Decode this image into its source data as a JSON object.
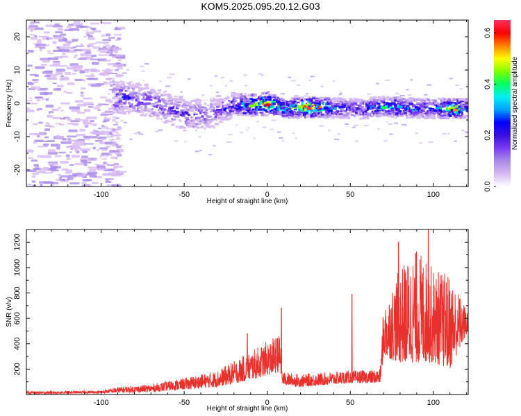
{
  "figure_title": "KOM5.2025.095.20.12.G03",
  "colors": {
    "snr_line": "#e8312c",
    "frame": "#000000",
    "colormap": [
      "#ffffff",
      "#d6b8f2",
      "#a98be8",
      "#7a3cf0",
      "#3a10e0",
      "#0000ff",
      "#00a0ff",
      "#00f0f0",
      "#00ff60",
      "#80ff00",
      "#ffff00",
      "#ff8000",
      "#ff0000",
      "#ff3060"
    ]
  },
  "chart_data": [
    {
      "type": "heatmap",
      "title": "KOM5.2025.095.20.12.G03",
      "xlabel": "Height of straight line (km)",
      "ylabel": "Frequency (Hz)",
      "xlim": [
        -145,
        121
      ],
      "ylim": [
        -25,
        25
      ],
      "x_ticks": [
        -100,
        -50,
        0,
        50,
        100
      ],
      "y_ticks": [
        -20,
        -10,
        0,
        10,
        20
      ],
      "colorbar": {
        "label": "Normalized spectral amplitude",
        "range": [
          0,
          0.65
        ],
        "ticks": [
          "0.0",
          "0.2",
          "0.4",
          "0.6"
        ]
      },
      "ridge": {
        "description_points_x": [
          -92,
          -75,
          -60,
          -50,
          -35,
          -20,
          -10,
          0,
          10,
          25,
          40,
          55,
          70,
          85,
          100,
          113,
          120
        ],
        "center_freq_hz": [
          1.5,
          0.5,
          -2,
          -4,
          -3.5,
          -1,
          -0.8,
          -0.5,
          -2,
          -1.5,
          -1.8,
          -2,
          -1.3,
          -1.8,
          -1.8,
          -2,
          -2
        ],
        "peak_amplitude": [
          0.25,
          0.2,
          0.2,
          0.22,
          0.15,
          0.3,
          0.45,
          0.6,
          0.35,
          0.65,
          0.3,
          0.25,
          0.4,
          0.3,
          0.3,
          0.55,
          0.3
        ]
      }
    },
    {
      "type": "line",
      "xlabel": "Height of straight line (km)",
      "ylabel": "SNR (v/v)",
      "xlim": [
        -145,
        121
      ],
      "ylim": [
        0,
        1300
      ],
      "x_ticks": [
        -100,
        -50,
        0,
        50,
        100
      ],
      "y_ticks": [
        200,
        400,
        600,
        800,
        1000,
        1200
      ],
      "envelope_x": [
        -145,
        -100,
        -90,
        -70,
        -50,
        -30,
        -15,
        0,
        8,
        9,
        20,
        40,
        50,
        51,
        60,
        68,
        70,
        80,
        90,
        100,
        110,
        121
      ],
      "envelope_low": [
        5,
        10,
        15,
        20,
        40,
        60,
        100,
        150,
        180,
        80,
        60,
        80,
        90,
        90,
        90,
        90,
        300,
        250,
        250,
        250,
        200,
        500
      ],
      "envelope_high": [
        25,
        30,
        60,
        80,
        130,
        190,
        300,
        420,
        480,
        180,
        160,
        180,
        190,
        190,
        190,
        200,
        700,
        1000,
        1150,
        1000,
        950,
        650
      ],
      "spikes": [
        [
          8.5,
          680
        ],
        [
          51,
          790
        ],
        [
          -12,
          480
        ],
        [
          97,
          1300
        ],
        [
          79,
          1200
        ]
      ]
    }
  ]
}
